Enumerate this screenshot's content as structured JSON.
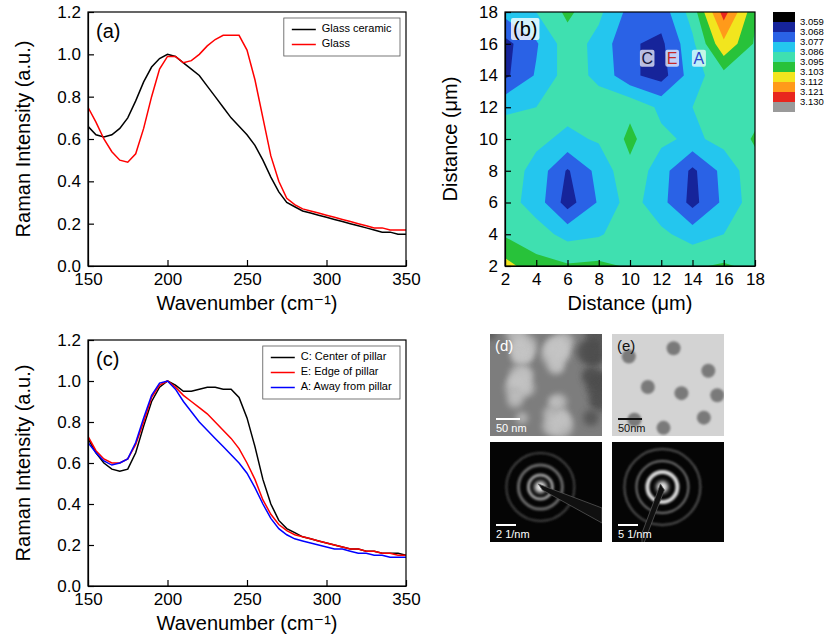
{
  "chart_data": [
    {
      "type": "line",
      "panel_label": "(a)",
      "xlabel": "Wavenumber (cm⁻¹)",
      "ylabel": "Raman Intensity (a.u.)",
      "xlim": [
        150,
        350
      ],
      "ylim": [
        0,
        1.2
      ],
      "xticks": [
        150,
        200,
        250,
        300,
        350
      ],
      "yticks": [
        {
          "value": 0,
          "label": "0.0"
        },
        0.2,
        0.4,
        0.6,
        0.8,
        {
          "value": 1,
          "label": "1.0"
        },
        1.2
      ],
      "legend": "upper right",
      "x": [
        150,
        155,
        160,
        165,
        170,
        175,
        180,
        185,
        190,
        195,
        200,
        205,
        210,
        215,
        220,
        225,
        230,
        235,
        240,
        245,
        250,
        255,
        260,
        265,
        270,
        275,
        280,
        285,
        290,
        295,
        300,
        305,
        310,
        315,
        320,
        325,
        330,
        335,
        340,
        345,
        350
      ],
      "series": [
        {
          "name": "Glass ceramic",
          "color": "#000000",
          "values": [
            0.66,
            0.62,
            0.61,
            0.62,
            0.65,
            0.7,
            0.78,
            0.87,
            0.94,
            0.98,
            1.0,
            0.99,
            0.96,
            0.93,
            0.9,
            0.85,
            0.8,
            0.75,
            0.7,
            0.66,
            0.62,
            0.57,
            0.5,
            0.42,
            0.35,
            0.3,
            0.28,
            0.26,
            0.25,
            0.24,
            0.23,
            0.22,
            0.21,
            0.2,
            0.19,
            0.18,
            0.17,
            0.16,
            0.16,
            0.15,
            0.15
          ]
        },
        {
          "name": "Glass",
          "color": "#ff0000",
          "values": [
            0.75,
            0.68,
            0.6,
            0.54,
            0.5,
            0.49,
            0.53,
            0.65,
            0.8,
            0.93,
            0.99,
            0.99,
            0.96,
            0.97,
            1.0,
            1.04,
            1.07,
            1.09,
            1.09,
            1.09,
            1.02,
            0.88,
            0.7,
            0.52,
            0.4,
            0.32,
            0.29,
            0.27,
            0.26,
            0.25,
            0.24,
            0.23,
            0.22,
            0.21,
            0.2,
            0.19,
            0.18,
            0.18,
            0.17,
            0.17,
            0.17
          ]
        }
      ]
    },
    {
      "type": "contour",
      "panel_label": "(b)",
      "xlabel": "Distance (μm)",
      "ylabel": "Distance (μm)",
      "xlim": [
        2,
        18
      ],
      "ylim": [
        2,
        18
      ],
      "xticks": [
        2,
        4,
        6,
        8,
        10,
        12,
        14,
        16,
        18
      ],
      "yticks": [
        2,
        4,
        6,
        8,
        10,
        12,
        14,
        16,
        18
      ],
      "x": [
        2,
        4,
        6,
        8,
        10,
        12,
        14,
        16,
        18
      ],
      "y": [
        2,
        4,
        6,
        8,
        10,
        12,
        14,
        16,
        18
      ],
      "z": [
        [
          3.106,
          3.098,
          3.096,
          3.097,
          3.094,
          3.092,
          3.094,
          3.096,
          3.093
        ],
        [
          3.094,
          3.09,
          3.083,
          3.085,
          3.091,
          3.088,
          3.082,
          3.086,
          3.092
        ],
        [
          3.09,
          3.082,
          3.064,
          3.078,
          3.09,
          3.08,
          3.065,
          3.079,
          3.091
        ],
        [
          3.091,
          3.083,
          3.067,
          3.08,
          3.093,
          3.081,
          3.066,
          3.08,
          3.092
        ],
        [
          3.092,
          3.088,
          3.084,
          3.087,
          3.097,
          3.088,
          3.084,
          3.089,
          3.096
        ],
        [
          3.084,
          3.086,
          3.089,
          3.09,
          3.093,
          3.084,
          3.086,
          3.09,
          3.092
        ],
        [
          3.066,
          3.078,
          3.09,
          3.084,
          3.07,
          3.064,
          3.082,
          3.092,
          3.09
        ],
        [
          3.065,
          3.076,
          3.091,
          3.083,
          3.069,
          3.066,
          3.084,
          3.11,
          3.094
        ],
        [
          3.08,
          3.086,
          3.097,
          3.088,
          3.074,
          3.072,
          3.09,
          3.125,
          3.096
        ]
      ],
      "colorbar": {
        "ticks": [
          3.059,
          3.068,
          3.077,
          3.086,
          3.095,
          3.103,
          3.112,
          3.121,
          {
            "value": 3.13,
            "label": "3.130"
          }
        ],
        "colors": [
          "#000000",
          "#16249a",
          "#2a62e6",
          "#24c6ee",
          "#3fe0b0",
          "#28c23a",
          "#f2e51e",
          "#ff9a1a",
          "#e8261e",
          "#9a9a9a"
        ]
      },
      "annotations": [
        {
          "text": "C",
          "x": 11.1,
          "y": 15,
          "color": "#14143c"
        },
        {
          "text": "E",
          "x": 12.7,
          "y": 15,
          "color": "#c62828"
        },
        {
          "text": "A",
          "x": 14.4,
          "y": 15,
          "color": "#2a44cc"
        }
      ]
    },
    {
      "type": "line",
      "panel_label": "(c)",
      "xlabel": "Wavenumber (cm⁻¹)",
      "ylabel": "Raman Intensity (a.u.)",
      "xlim": [
        150,
        350
      ],
      "ylim": [
        0,
        1.2
      ],
      "xticks": [
        150,
        200,
        250,
        300,
        350
      ],
      "yticks": [
        {
          "value": 0,
          "label": "0.0"
        },
        0.2,
        0.4,
        0.6,
        0.8,
        {
          "value": 1,
          "label": "1.0"
        },
        1.2
      ],
      "legend": "upper right",
      "x": [
        150,
        155,
        160,
        165,
        170,
        175,
        180,
        185,
        190,
        195,
        200,
        205,
        210,
        215,
        220,
        225,
        230,
        235,
        240,
        245,
        250,
        255,
        260,
        265,
        270,
        275,
        280,
        285,
        290,
        295,
        300,
        305,
        310,
        315,
        320,
        325,
        330,
        335,
        340,
        345,
        350
      ],
      "series": [
        {
          "name": "C: Center of pillar",
          "color": "#000000",
          "values": [
            0.72,
            0.65,
            0.6,
            0.57,
            0.56,
            0.57,
            0.65,
            0.78,
            0.9,
            0.97,
            1.0,
            0.98,
            0.95,
            0.95,
            0.96,
            0.97,
            0.97,
            0.96,
            0.96,
            0.92,
            0.82,
            0.68,
            0.52,
            0.4,
            0.32,
            0.28,
            0.26,
            0.24,
            0.23,
            0.22,
            0.21,
            0.2,
            0.19,
            0.18,
            0.18,
            0.17,
            0.17,
            0.16,
            0.16,
            0.16,
            0.15
          ]
        },
        {
          "name": "E: Edge of pillar",
          "color": "#ff0000",
          "values": [
            0.73,
            0.66,
            0.62,
            0.6,
            0.6,
            0.62,
            0.69,
            0.8,
            0.92,
            0.98,
            1.0,
            0.97,
            0.93,
            0.9,
            0.87,
            0.84,
            0.8,
            0.76,
            0.72,
            0.67,
            0.6,
            0.52,
            0.42,
            0.35,
            0.3,
            0.27,
            0.25,
            0.24,
            0.23,
            0.22,
            0.21,
            0.2,
            0.19,
            0.18,
            0.18,
            0.17,
            0.17,
            0.16,
            0.16,
            0.15,
            0.15
          ]
        },
        {
          "name": "A: Away from pillar",
          "color": "#0000ff",
          "values": [
            0.7,
            0.65,
            0.61,
            0.59,
            0.6,
            0.62,
            0.7,
            0.82,
            0.93,
            0.99,
            1.0,
            0.96,
            0.9,
            0.85,
            0.8,
            0.76,
            0.72,
            0.68,
            0.64,
            0.6,
            0.55,
            0.48,
            0.4,
            0.33,
            0.28,
            0.25,
            0.23,
            0.22,
            0.21,
            0.2,
            0.19,
            0.18,
            0.18,
            0.17,
            0.16,
            0.16,
            0.15,
            0.15,
            0.14,
            0.14,
            0.14
          ]
        }
      ]
    }
  ],
  "images": [
    {
      "panel_label": "(d)",
      "scale_bar": "50 nm",
      "diffraction_scale_bar": "2 1/nm"
    },
    {
      "panel_label": "(e)",
      "scale_bar": "50nm",
      "diffraction_scale_bar": "5 1/nm"
    }
  ]
}
